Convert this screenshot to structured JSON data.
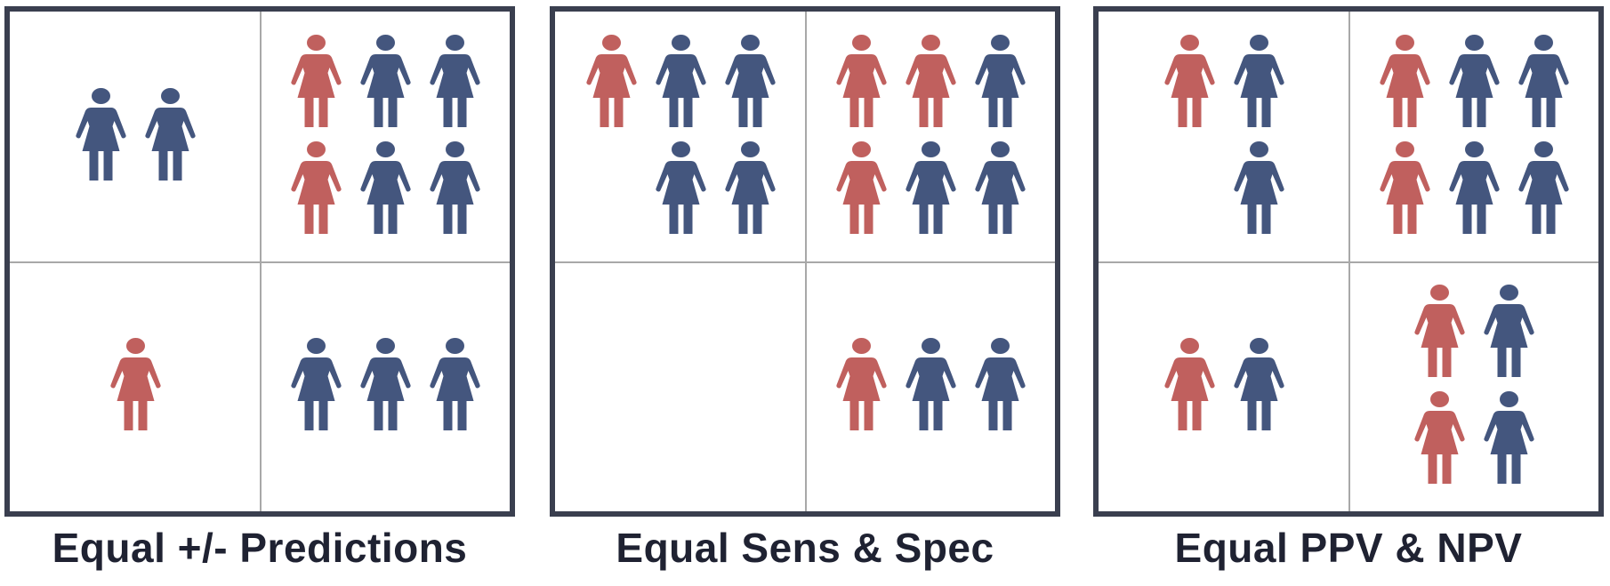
{
  "colors": {
    "red": "#c0605e",
    "blue": "#44567e",
    "frame": "#3a3f4f",
    "grid": "#a8a8a8"
  },
  "icon": "person-icon",
  "panels": [
    {
      "caption": "Equal +/- Predictions",
      "quadrants": {
        "top_left": [
          [
            "blue",
            "blue"
          ]
        ],
        "top_right": [
          [
            "red",
            "blue",
            "blue"
          ],
          [
            "red",
            "blue",
            "blue"
          ]
        ],
        "bottom_left": [
          [
            "red"
          ]
        ],
        "bottom_right": [
          [
            "blue",
            "blue",
            "blue"
          ]
        ]
      }
    },
    {
      "caption": "Equal Sens & Spec",
      "quadrants": {
        "top_left": [
          [
            "red",
            "blue",
            "blue"
          ],
          [
            "",
            "blue",
            "blue"
          ]
        ],
        "top_right": [
          [
            "red",
            "red",
            "blue"
          ],
          [
            "red",
            "blue",
            "blue"
          ]
        ],
        "bottom_left": [],
        "bottom_right": [
          [
            "red",
            "blue",
            "blue"
          ]
        ]
      }
    },
    {
      "caption": "Equal PPV & NPV",
      "quadrants": {
        "top_left": [
          [
            "red",
            "blue"
          ],
          [
            "",
            "blue"
          ]
        ],
        "top_right": [
          [
            "red",
            "blue",
            "blue"
          ],
          [
            "red",
            "blue",
            "blue"
          ]
        ],
        "bottom_left": [
          [
            "red",
            "blue"
          ]
        ],
        "bottom_right": [
          [
            "red",
            "blue"
          ],
          [
            "red",
            "blue"
          ]
        ]
      }
    }
  ]
}
